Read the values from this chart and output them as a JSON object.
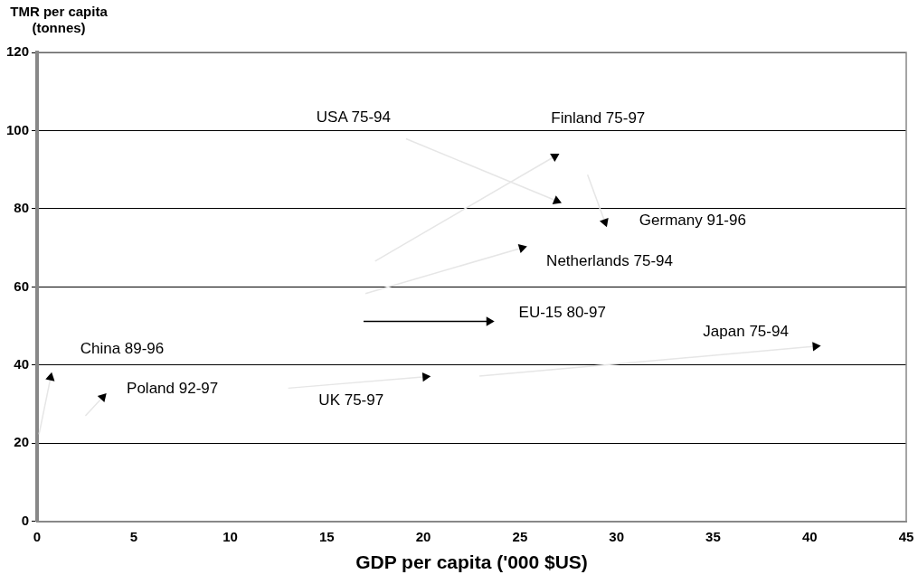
{
  "chart_data": {
    "type": "line",
    "xlabel": "GDP per capita ('000 $US)",
    "ylabel": "TMR per capita (tonnes)",
    "xlim": [
      0,
      45
    ],
    "xticks": [
      0,
      5,
      10,
      15,
      20,
      25,
      30,
      35,
      40,
      45
    ],
    "ylim": [
      0,
      120
    ],
    "yticks": [
      0,
      20,
      40,
      60,
      80,
      100,
      120
    ],
    "grid": "y",
    "marker": "triangle",
    "legend": false,
    "annotations": [
      {
        "text": "USA 75-94",
        "x": 19.1,
        "y": 97.9
      },
      {
        "text": "Finland 75-97",
        "x": 26.8,
        "y": 93.4
      },
      {
        "text": "Germany 91-96",
        "x": 29.4,
        "y": 76.6
      },
      {
        "text": "Netherlands 75-94",
        "x": 25.1,
        "y": 70.0
      },
      {
        "text": "EU-15 80-97",
        "x": 23.4,
        "y": 51.2
      },
      {
        "text": "Japan 75-94",
        "x": 40.3,
        "y": 44.8
      },
      {
        "text": "UK 75-97",
        "x": 20.1,
        "y": 37.0
      },
      {
        "text": "China 89-96",
        "x": 0.7,
        "y": 36.8
      },
      {
        "text": "Poland 92-97",
        "x": 3.4,
        "y": 31.8
      }
    ],
    "series": [
      {
        "color": "#e6e6e6",
        "x": [
          19.1,
          26.9
        ],
        "values": [
          97.9,
          82.0
        ]
      },
      {
        "color": "#e6e6e6",
        "x": [
          17.5,
          26.8
        ],
        "values": [
          66.6,
          93.4
        ]
      },
      {
        "color": "#e6e6e6",
        "x": [
          28.5,
          29.4
        ],
        "values": [
          88.7,
          76.6
        ]
      },
      {
        "color": "#e6e6e6",
        "x": [
          17.0,
          25.1
        ],
        "values": [
          58.3,
          70.0
        ]
      },
      {
        "color": "#000000",
        "x": [
          16.9,
          23.4
        ],
        "values": [
          51.2,
          51.2
        ]
      },
      {
        "color": "#e6e6e6",
        "x": [
          22.9,
          40.3
        ],
        "values": [
          37.2,
          44.8
        ]
      },
      {
        "color": "#e6e6e6",
        "x": [
          13.0,
          20.1
        ],
        "values": [
          34.1,
          37.0
        ]
      },
      {
        "color": "#e6e6e6",
        "x": [
          0.1,
          0.7
        ],
        "values": [
          22.3,
          36.8
        ]
      },
      {
        "color": "#e6e6e6",
        "x": [
          2.5,
          3.4
        ],
        "values": [
          27.0,
          31.8
        ]
      }
    ]
  }
}
